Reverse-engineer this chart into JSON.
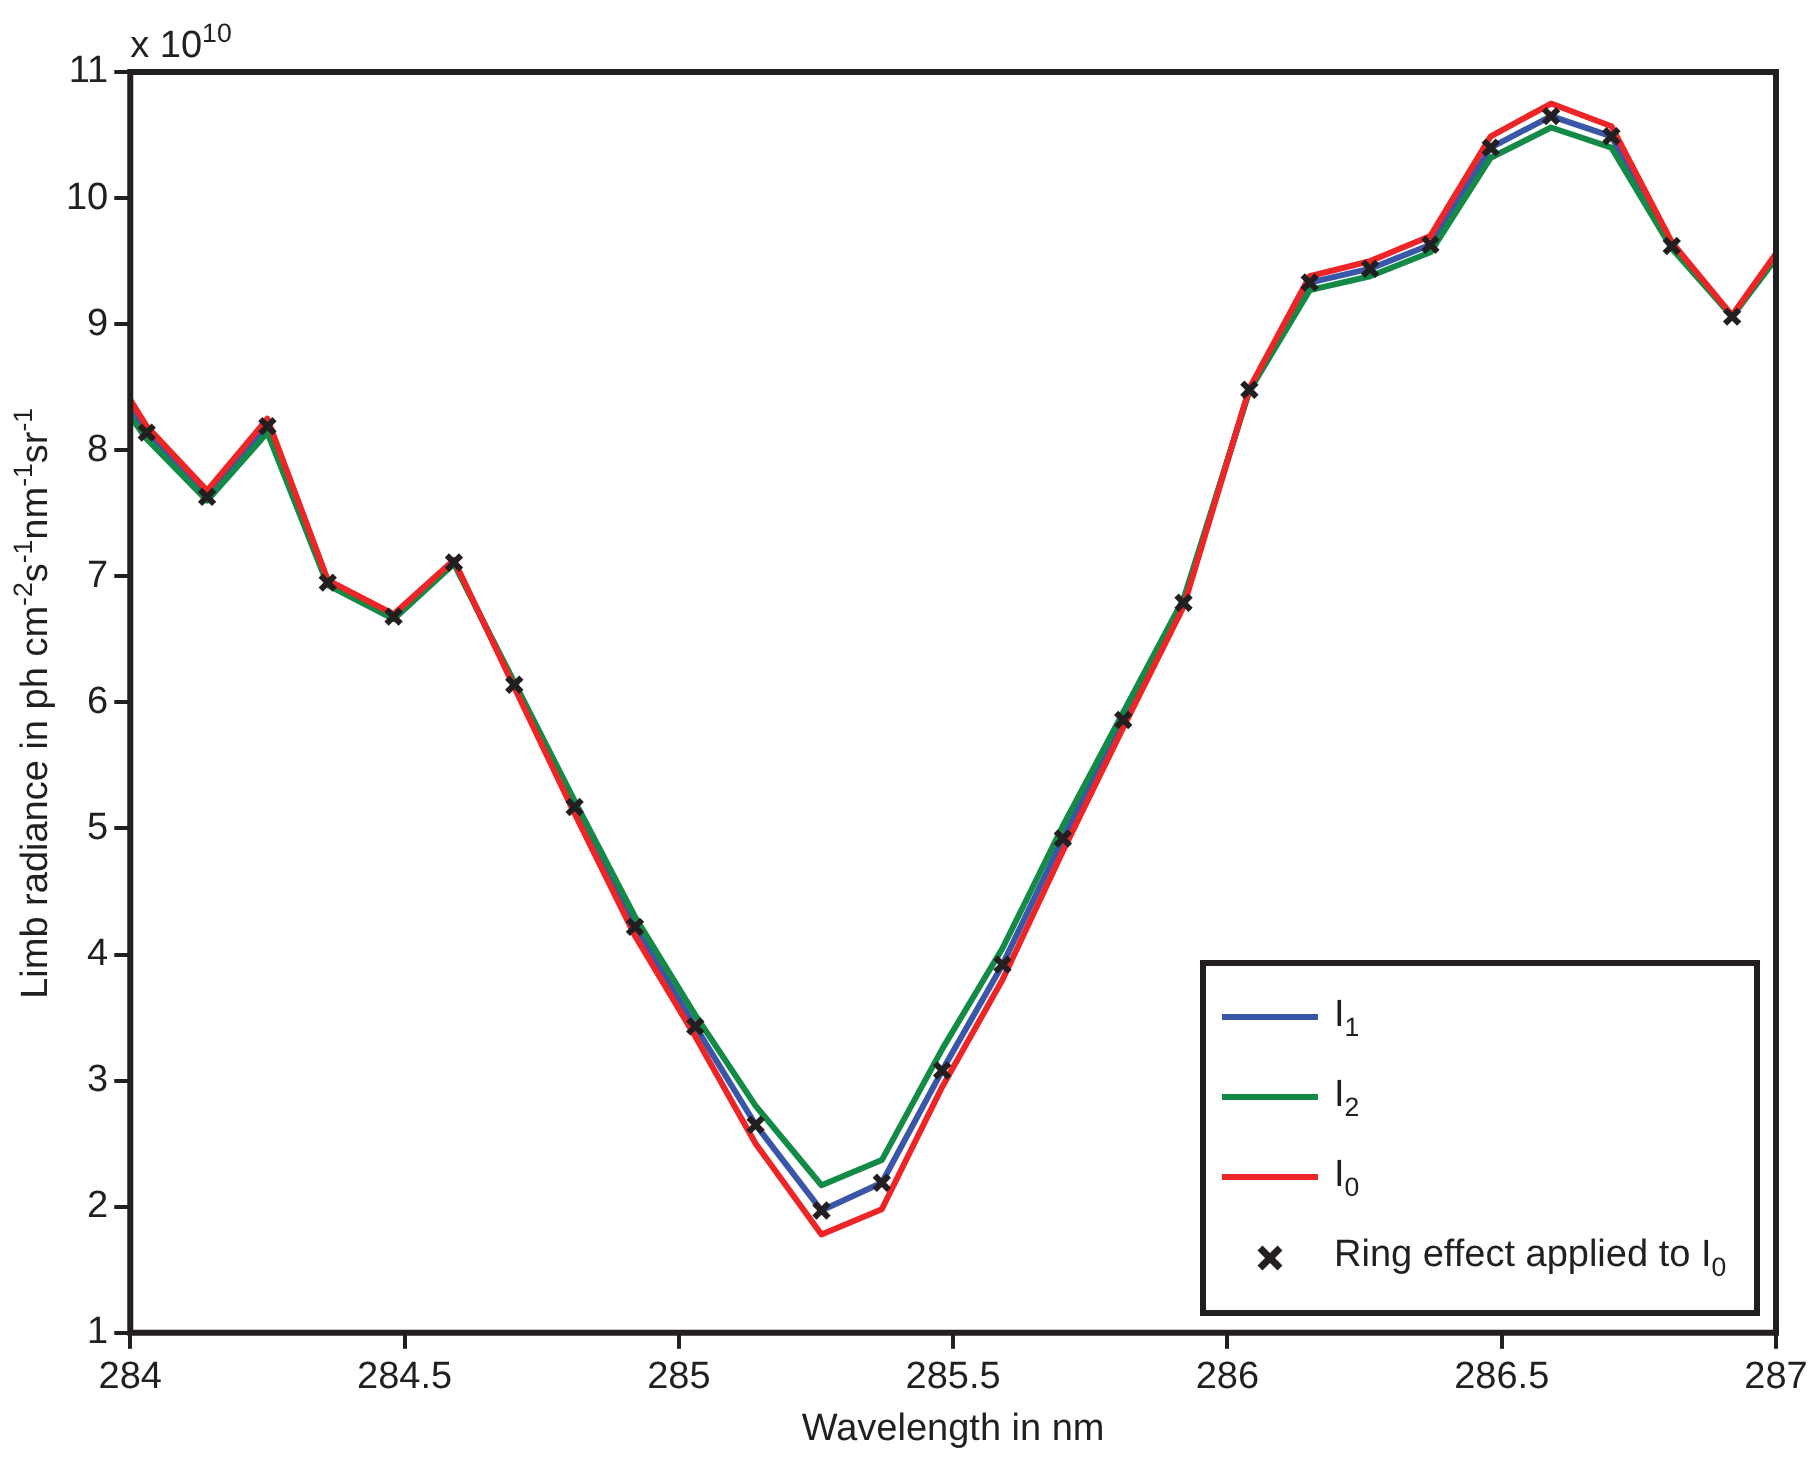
{
  "chart_data": {
    "type": "line",
    "xlabel": "Wavelength in nm",
    "ylabel": "Limb radiance in ph cm$^{-2}$s$^{-1}$nm$^{-1}$sr$^{-1}$",
    "annotations": [
      "x 10$^{10}$"
    ],
    "xlim": [
      284,
      287
    ],
    "xticks": [
      284,
      284.5,
      285,
      285.5,
      286,
      286.5,
      287
    ],
    "ylim": [
      1,
      11
    ],
    "yticks": [
      1,
      2,
      3,
      4,
      5,
      6,
      7,
      8,
      9,
      10,
      11
    ],
    "grid": false,
    "legend": "bottom right",
    "line_style": "solid",
    "series": [
      {
        "name": "I$_{1}$",
        "color": "#3a56a8",
        "type": "line",
        "marker": "none",
        "x": [
          284,
          284.03,
          284.14,
          284.25,
          284.36,
          284.48,
          284.59,
          284.7,
          284.81,
          284.92,
          285.03,
          285.14,
          285.26,
          285.37,
          285.48,
          285.59,
          285.7,
          285.81,
          285.92,
          286.04,
          286.15,
          286.26,
          286.37,
          286.48,
          286.59,
          286.7,
          286.81,
          286.92
        ],
        "values": [
          8.33,
          8.14,
          7.63,
          8.19,
          6.95,
          6.68,
          7.11,
          6.14,
          5.17,
          4.22,
          3.43,
          2.65,
          1.97,
          2.19,
          3.08,
          3.92,
          4.92,
          5.86,
          6.79,
          8.48,
          9.33,
          9.44,
          9.63,
          10.4,
          10.65,
          10.49,
          9.62,
          9.06
        ]
      },
      {
        "name": "I$_{2}$",
        "color": "#138a45",
        "type": "line",
        "marker": "none",
        "x": [
          284,
          284.03,
          284.14,
          284.25,
          284.36,
          284.48,
          284.59,
          284.7,
          284.81,
          284.92,
          285.03,
          285.14,
          285.26,
          285.37,
          285.48,
          285.59,
          285.7,
          285.81,
          285.92,
          286.04,
          286.15,
          286.26,
          286.37,
          286.48,
          286.59,
          286.7,
          286.81,
          286.92,
          287
        ],
        "values": [
          8.27,
          8.09,
          7.6,
          8.14,
          6.93,
          6.66,
          7.1,
          6.16,
          5.22,
          4.3,
          3.52,
          2.8,
          2.17,
          2.37,
          3.25,
          4.05,
          5.02,
          5.92,
          6.82,
          8.47,
          9.27,
          9.38,
          9.57,
          10.32,
          10.56,
          10.4,
          9.6,
          9.06,
          9.52
        ]
      },
      {
        "name": "I$_{0}$",
        "color": "#ee2526",
        "type": "line",
        "marker": "none",
        "x": [
          284,
          284.03,
          284.14,
          284.25,
          284.36,
          284.48,
          284.59,
          284.7,
          284.81,
          284.92,
          285.03,
          285.14,
          285.26,
          285.37,
          285.48,
          285.59,
          285.7,
          285.81,
          285.92,
          286.04,
          286.15,
          286.26,
          286.37,
          286.48,
          286.59,
          286.7,
          286.81,
          286.92,
          287
        ],
        "values": [
          8.4,
          8.19,
          7.68,
          8.25,
          6.97,
          6.7,
          7.13,
          6.12,
          5.12,
          4.15,
          3.35,
          2.5,
          1.78,
          1.98,
          2.95,
          3.8,
          4.82,
          5.8,
          6.76,
          8.49,
          9.38,
          9.5,
          9.7,
          10.49,
          10.75,
          10.57,
          9.65,
          9.07,
          9.56
        ]
      },
      {
        "name": "Ring effect applied to I$_{0}$",
        "color": "#231f20",
        "type": "scatter",
        "marker": "cross",
        "x": [
          284.03,
          284.14,
          284.25,
          284.36,
          284.48,
          284.59,
          284.7,
          284.81,
          284.92,
          285.03,
          285.14,
          285.26,
          285.37,
          285.48,
          285.59,
          285.7,
          285.81,
          285.92,
          286.04,
          286.15,
          286.26,
          286.37,
          286.48,
          286.59,
          286.7,
          286.81,
          286.92
        ],
        "values": [
          8.14,
          7.63,
          8.19,
          6.95,
          6.68,
          7.11,
          6.14,
          5.17,
          4.22,
          3.43,
          2.65,
          1.97,
          2.19,
          3.08,
          3.92,
          4.92,
          5.86,
          6.79,
          8.48,
          9.33,
          9.44,
          9.63,
          10.4,
          10.65,
          10.49,
          9.62,
          9.06
        ]
      }
    ]
  }
}
